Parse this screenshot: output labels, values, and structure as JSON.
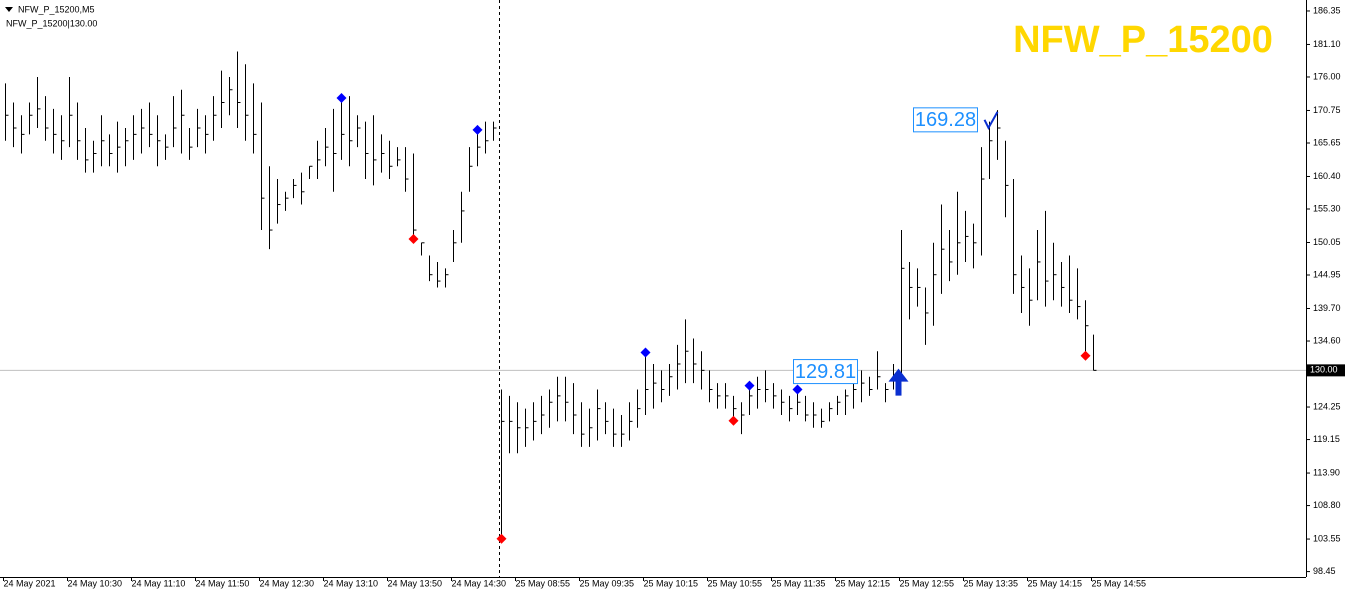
{
  "chart_data": {
    "type": "ohlc",
    "title": "NFW_P_15200",
    "header": [
      "NFW_P_15200,M5",
      "NFW_P_15200|130.00"
    ],
    "color": "#000000",
    "categories": [
      "24 May 2021",
      null,
      null,
      null,
      null,
      null,
      null,
      null,
      "24 May 10:30",
      null,
      null,
      null,
      null,
      null,
      null,
      null,
      "24 May 11:10",
      null,
      null,
      null,
      null,
      null,
      null,
      null,
      "24 May 11:50",
      null,
      null,
      null,
      null,
      null,
      null,
      null,
      "24 May 12:30",
      null,
      null,
      null,
      null,
      null,
      null,
      null,
      "24 May 13:10",
      null,
      null,
      null,
      null,
      null,
      null,
      null,
      "24 May 13:50",
      null,
      null,
      null,
      null,
      null,
      null,
      null,
      "24 May 14:30",
      null,
      null,
      null,
      null,
      null,
      null,
      null,
      "25 May 08:55",
      null,
      null,
      null,
      null,
      null,
      null,
      null,
      "25 May 09:35",
      null,
      null,
      null,
      null,
      null,
      null,
      null,
      "25 May 10:15",
      null,
      null,
      null,
      null,
      null,
      null,
      null,
      "25 May 10:55",
      null,
      null,
      null,
      null,
      null,
      null,
      null,
      "25 May 11:35",
      null,
      null,
      null,
      null,
      null,
      null,
      null,
      "25 May 12:15",
      null,
      null,
      null,
      null,
      null,
      null,
      null,
      "25 May 12:55",
      null,
      null,
      null,
      null,
      null,
      null,
      null,
      "25 May 13:35",
      null,
      null,
      null,
      null,
      null,
      null,
      null,
      "25 May 14:15",
      null,
      null,
      null,
      null,
      null,
      null,
      null,
      "25 May 14:55"
    ],
    "high": [
      175,
      172,
      170,
      172,
      176,
      173,
      171,
      170,
      176,
      172,
      168,
      166,
      170,
      167,
      169,
      168,
      170,
      171,
      172,
      170,
      167,
      173,
      174,
      168,
      171,
      170,
      173,
      177,
      176,
      180,
      178,
      175,
      172,
      162,
      160,
      158,
      160,
      161,
      162,
      166,
      168,
      171,
      172,
      173,
      170,
      169,
      170,
      167,
      166,
      165,
      165,
      164,
      150,
      148,
      147,
      146,
      152,
      158,
      165,
      168,
      169,
      169,
      127,
      126,
      125,
      124,
      125,
      126,
      127,
      129,
      129,
      128,
      125,
      124,
      127,
      125,
      124,
      123,
      125,
      127,
      133,
      131,
      130,
      131,
      134,
      138,
      135,
      133,
      130,
      128,
      128,
      126,
      125,
      128,
      129,
      130,
      128,
      127,
      126,
      127,
      126,
      125,
      124,
      125,
      126,
      127,
      128,
      130,
      129,
      133,
      128,
      131,
      152,
      147,
      146,
      143,
      150,
      156,
      152,
      158,
      155,
      153,
      165,
      169,
      170.8,
      166,
      160,
      148,
      146,
      152,
      155,
      150,
      147,
      148,
      146,
      141,
      135.6
    ],
    "low": [
      166,
      165,
      164,
      167,
      168,
      166,
      164,
      163,
      165,
      163,
      161,
      161,
      162,
      162,
      161,
      162,
      163,
      164,
      165,
      162,
      163,
      165,
      164,
      163,
      165,
      164,
      166,
      168,
      170,
      168,
      166,
      164,
      152,
      149,
      153,
      155,
      157,
      156,
      160,
      160,
      162,
      158,
      163,
      162,
      165,
      160,
      159,
      161,
      160,
      162,
      158,
      150.5,
      148,
      144,
      143,
      143,
      147,
      150,
      158,
      162,
      164,
      166,
      103.5,
      117,
      117,
      118,
      119,
      120,
      121,
      122,
      122,
      120,
      118,
      118,
      119,
      120,
      118,
      118,
      119,
      121,
      123,
      124,
      125,
      126,
      127,
      128,
      128,
      127,
      125,
      124,
      124,
      122,
      120,
      123,
      124,
      125,
      124,
      123,
      122,
      123,
      122,
      121,
      121,
      122,
      123,
      123,
      124,
      125,
      126,
      127,
      125,
      127,
      129,
      138,
      140,
      134,
      137,
      142,
      144,
      145,
      147,
      146,
      148,
      160,
      163,
      154,
      142,
      139,
      137,
      141,
      140,
      141,
      140,
      139,
      138,
      133,
      130
    ],
    "close": [
      170,
      168,
      167,
      170,
      171,
      168,
      167,
      166,
      170,
      166,
      163,
      164,
      166,
      164,
      165,
      166,
      167,
      168,
      167,
      166,
      165,
      168,
      170,
      165,
      168,
      167,
      170,
      172,
      174,
      172,
      170,
      167,
      157,
      152,
      156,
      157,
      159,
      158,
      162,
      163,
      165,
      164,
      167,
      166,
      168,
      164,
      163,
      164,
      162,
      163,
      160,
      152,
      150,
      145,
      144,
      145,
      150,
      155,
      162,
      165,
      166,
      168,
      122,
      122,
      121,
      121,
      122,
      123,
      125,
      126,
      125,
      123,
      120,
      121,
      124,
      122,
      120,
      120,
      122,
      124,
      127,
      128,
      127,
      129,
      131,
      133,
      131,
      130,
      127,
      126,
      126,
      124,
      123,
      126,
      127,
      127,
      126,
      125,
      124,
      125,
      123,
      123,
      122,
      124,
      125,
      126,
      127,
      128,
      127,
      129,
      127,
      129,
      146,
      143,
      143,
      139,
      145,
      149,
      147,
      150,
      151,
      150,
      160,
      166,
      168,
      159,
      145,
      143,
      141,
      147,
      144,
      145,
      143,
      141,
      140,
      137,
      130
    ],
    "markers": [
      {
        "bar": 42,
        "value": 172.7,
        "color": "#0000ff"
      },
      {
        "bar": 59,
        "value": 167.7,
        "color": "#0000ff"
      },
      {
        "bar": 80,
        "value": 132.8,
        "color": "#0000ff"
      },
      {
        "bar": 93,
        "value": 127.6,
        "color": "#0000ff"
      },
      {
        "bar": 99,
        "value": 127,
        "color": "#0000ff"
      },
      {
        "bar": 51,
        "value": 150.6,
        "color": "#ff0000"
      },
      {
        "bar": 62,
        "value": 103.6,
        "color": "#ff0000"
      },
      {
        "bar": 91,
        "value": 122.1,
        "color": "#ff0000"
      },
      {
        "bar": 135,
        "value": 132.3,
        "color": "#ff0000"
      }
    ],
    "signals": [
      {
        "bar": 111,
        "value": 129.81,
        "color": "#1e90ff"
      },
      {
        "bar": 123,
        "value": 169.28,
        "color": "#1e90ff"
      }
    ],
    "current_price": {
      "value": 130,
      "label": "130.00"
    },
    "ylim": [
      97.6,
      187.6
    ],
    "yticks": [
      98.45,
      103.55,
      108.8,
      113.9,
      119.15,
      124.25,
      134.6,
      139.7,
      144.95,
      150.05,
      155.3,
      160.4,
      165.65,
      170.75,
      176,
      181.1,
      186.35
    ],
    "ytick_labels": [
      "98.45",
      "103.55",
      "108.80",
      "113.90",
      "119.15",
      "124.25",
      "134.60",
      "139.70",
      "144.95",
      "150.05",
      "155.30",
      "160.40",
      "165.65",
      "170.75",
      "176.00",
      "181.10",
      "186.35"
    ]
  }
}
